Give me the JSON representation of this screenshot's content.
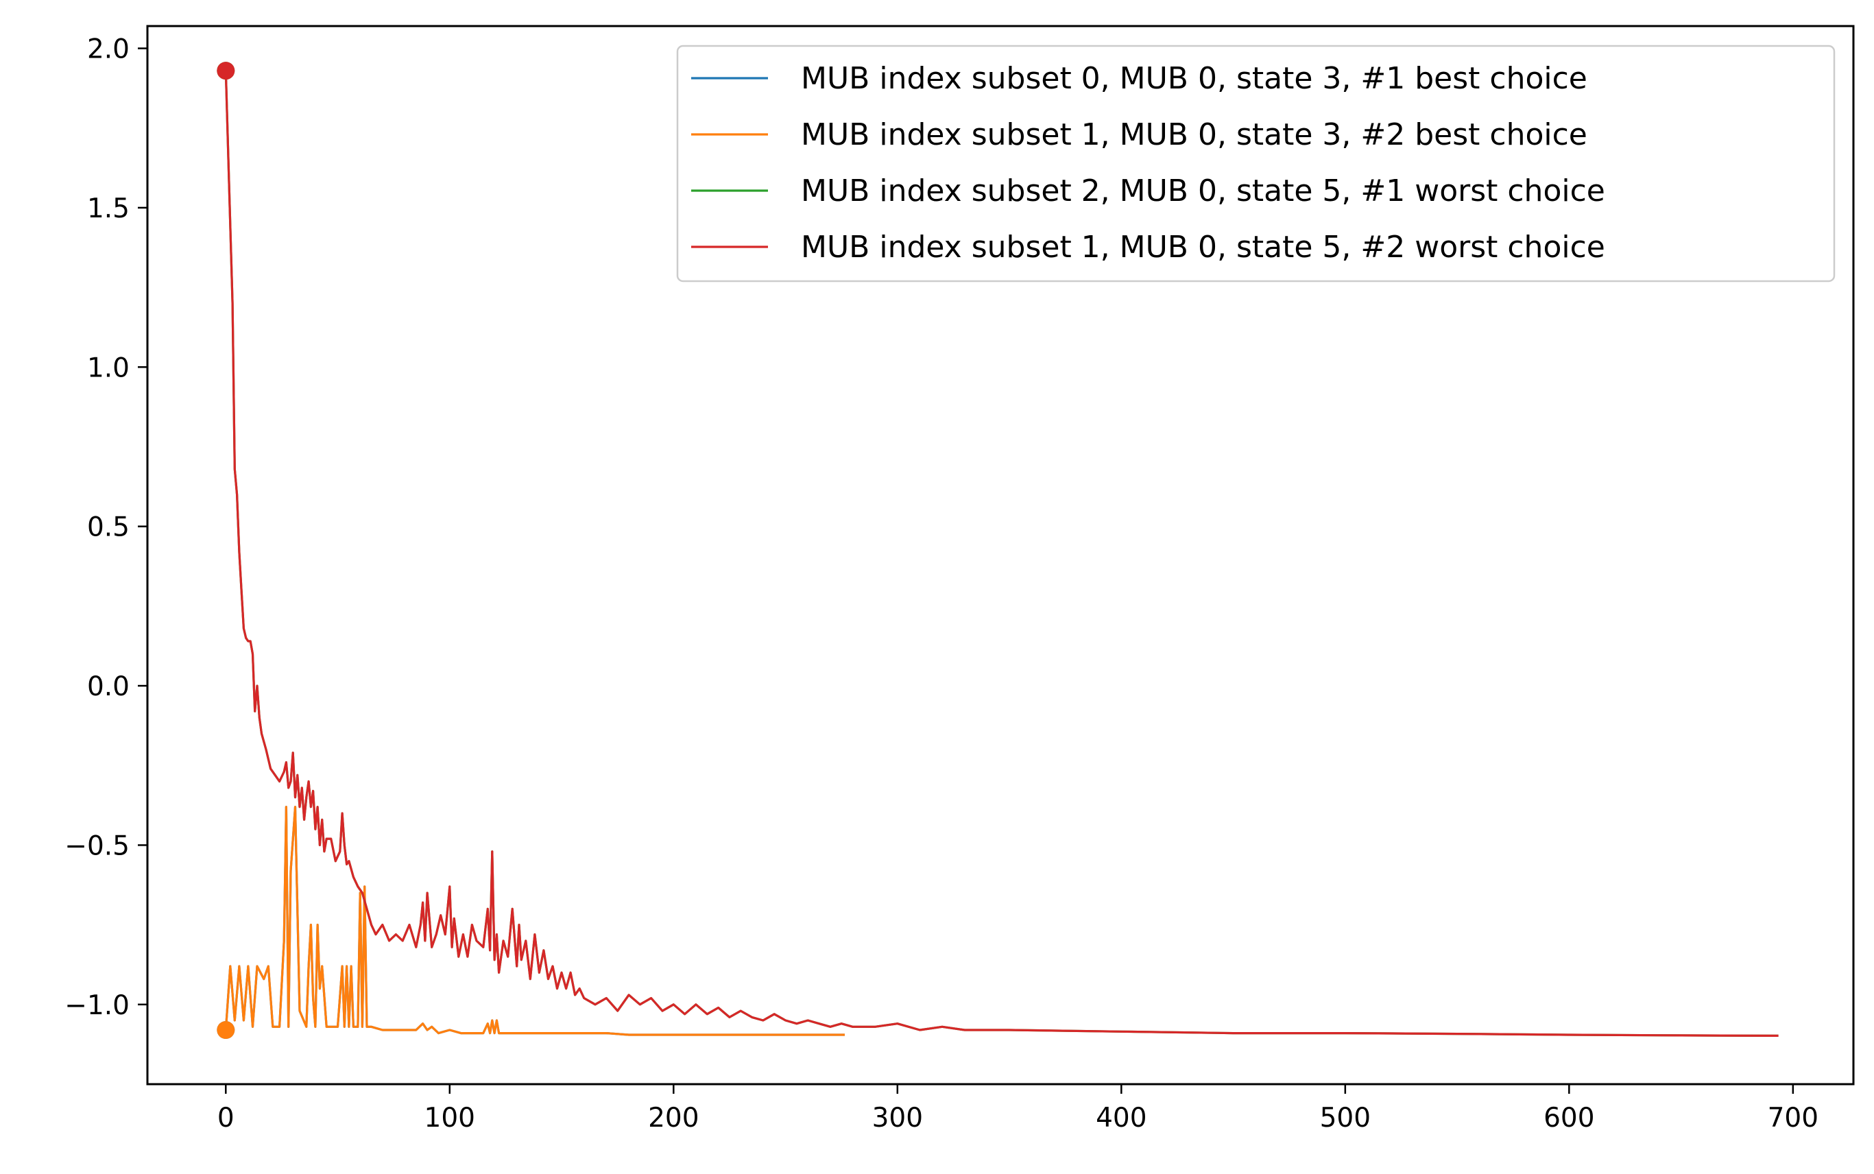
{
  "chart_data": {
    "type": "line",
    "title": "",
    "xlabel": "",
    "ylabel": "",
    "xlim": [
      -35,
      727
    ],
    "ylim": [
      -1.25,
      2.07
    ],
    "xticks": [
      0,
      100,
      200,
      300,
      400,
      500,
      600,
      700
    ],
    "xtick_labels": [
      "0",
      "100",
      "200",
      "300",
      "400",
      "500",
      "600",
      "700"
    ],
    "yticks": [
      -1.0,
      -0.5,
      0.0,
      0.5,
      1.0,
      1.5,
      2.0
    ],
    "ytick_labels": [
      "−1.0",
      "−0.5",
      "0.0",
      "0.5",
      "1.0",
      "1.5",
      "2.0"
    ],
    "grid": false,
    "legend_position": "top-right",
    "series": [
      {
        "name": "MUB index subset 0, MUB 0, state 3, #1 best choice",
        "color": "#1f77b4",
        "x": [
          0,
          2,
          4,
          6,
          8,
          10,
          12,
          14,
          17,
          19,
          21,
          24,
          26,
          27,
          28,
          29,
          31,
          33,
          36,
          37,
          38,
          39,
          40,
          41,
          42,
          43,
          45,
          48,
          50,
          52,
          53,
          54,
          55,
          56,
          57,
          59,
          60,
          61,
          62,
          63,
          65,
          70,
          75,
          80,
          85,
          88,
          90,
          92,
          95,
          100,
          105,
          110,
          115,
          117,
          118,
          119,
          120,
          121,
          122,
          125,
          130,
          140,
          150,
          165,
          170,
          180,
          200,
          240,
          276
        ],
        "y": [
          -1.08,
          -0.88,
          -1.05,
          -0.88,
          -1.05,
          -0.88,
          -1.07,
          -0.88,
          -0.92,
          -0.88,
          -1.07,
          -1.07,
          -0.8,
          -0.38,
          -1.07,
          -0.58,
          -0.38,
          -1.02,
          -1.07,
          -0.88,
          -0.75,
          -0.98,
          -1.07,
          -0.75,
          -0.95,
          -0.88,
          -1.07,
          -1.07,
          -1.07,
          -0.88,
          -1.07,
          -0.88,
          -1.07,
          -0.88,
          -1.07,
          -1.07,
          -0.65,
          -1.07,
          -0.63,
          -1.07,
          -1.07,
          -1.08,
          -1.08,
          -1.08,
          -1.08,
          -1.06,
          -1.08,
          -1.07,
          -1.09,
          -1.08,
          -1.09,
          -1.09,
          -1.09,
          -1.06,
          -1.09,
          -1.05,
          -1.09,
          -1.05,
          -1.09,
          -1.09,
          -1.09,
          -1.09,
          -1.09,
          -1.09,
          -1.09,
          -1.095,
          -1.095,
          -1.095,
          -1.095
        ],
        "marker": {
          "x": 0,
          "y": -1.08
        }
      },
      {
        "name": "MUB index subset 1, MUB 0, state 3, #2 best choice",
        "color": "#ff7f0e",
        "x": [
          0,
          2,
          4,
          6,
          8,
          10,
          12,
          14,
          17,
          19,
          21,
          24,
          26,
          27,
          28,
          29,
          31,
          33,
          36,
          37,
          38,
          39,
          40,
          41,
          42,
          43,
          45,
          48,
          50,
          52,
          53,
          54,
          55,
          56,
          57,
          59,
          60,
          61,
          62,
          63,
          65,
          70,
          75,
          80,
          85,
          88,
          90,
          92,
          95,
          100,
          105,
          110,
          115,
          117,
          118,
          119,
          120,
          121,
          122,
          125,
          130,
          140,
          150,
          165,
          170,
          180,
          200,
          240,
          276
        ],
        "y": [
          -1.08,
          -0.88,
          -1.05,
          -0.88,
          -1.05,
          -0.88,
          -1.07,
          -0.88,
          -0.92,
          -0.88,
          -1.07,
          -1.07,
          -0.8,
          -0.38,
          -1.07,
          -0.58,
          -0.38,
          -1.02,
          -1.07,
          -0.88,
          -0.75,
          -0.98,
          -1.07,
          -0.75,
          -0.95,
          -0.88,
          -1.07,
          -1.07,
          -1.07,
          -0.88,
          -1.07,
          -0.88,
          -1.07,
          -0.88,
          -1.07,
          -1.07,
          -0.65,
          -1.07,
          -0.63,
          -1.07,
          -1.07,
          -1.08,
          -1.08,
          -1.08,
          -1.08,
          -1.06,
          -1.08,
          -1.07,
          -1.09,
          -1.08,
          -1.09,
          -1.09,
          -1.09,
          -1.06,
          -1.09,
          -1.05,
          -1.09,
          -1.05,
          -1.09,
          -1.09,
          -1.09,
          -1.09,
          -1.09,
          -1.09,
          -1.09,
          -1.095,
          -1.095,
          -1.095,
          -1.095
        ],
        "marker": {
          "x": 0,
          "y": -1.08
        }
      },
      {
        "name": "MUB index subset 2, MUB 0, state 5, #1 worst choice",
        "color": "#2ca02c",
        "x": [
          0,
          3,
          4,
          5,
          6,
          7,
          8,
          9,
          10,
          11,
          12,
          13,
          14,
          15,
          16,
          18,
          20,
          22,
          24,
          26,
          27,
          28,
          29,
          30,
          31,
          32,
          33,
          34,
          35,
          36,
          37,
          38,
          39,
          40,
          41,
          42,
          43,
          44,
          45,
          47,
          49,
          51,
          52,
          53,
          54,
          55,
          57,
          59,
          61,
          63,
          65,
          67,
          70,
          73,
          76,
          79,
          82,
          85,
          87,
          88,
          89,
          90,
          92,
          94,
          96,
          98,
          100,
          101,
          102,
          104,
          106,
          108,
          110,
          112,
          115,
          117,
          118,
          119,
          120,
          121,
          122,
          124,
          126,
          128,
          130,
          131,
          132,
          134,
          136,
          138,
          140,
          142,
          144,
          146,
          148,
          150,
          152,
          154,
          156,
          158,
          160,
          165,
          170,
          175,
          180,
          185,
          190,
          195,
          200,
          205,
          210,
          215,
          220,
          225,
          230,
          235,
          240,
          245,
          250,
          255,
          260,
          265,
          270,
          275,
          280,
          290,
          300,
          310,
          320,
          330,
          350,
          400,
          450,
          500,
          550,
          600,
          650,
          693
        ],
        "y": [
          1.93,
          1.2,
          0.68,
          0.6,
          0.42,
          0.3,
          0.18,
          0.15,
          0.14,
          0.14,
          0.1,
          -0.08,
          0.0,
          -0.1,
          -0.15,
          -0.2,
          -0.26,
          -0.28,
          -0.3,
          -0.27,
          -0.24,
          -0.32,
          -0.3,
          -0.21,
          -0.35,
          -0.28,
          -0.38,
          -0.32,
          -0.42,
          -0.35,
          -0.3,
          -0.38,
          -0.33,
          -0.45,
          -0.38,
          -0.5,
          -0.42,
          -0.52,
          -0.48,
          -0.48,
          -0.55,
          -0.52,
          -0.4,
          -0.5,
          -0.56,
          -0.55,
          -0.6,
          -0.63,
          -0.65,
          -0.7,
          -0.75,
          -0.78,
          -0.75,
          -0.8,
          -0.78,
          -0.8,
          -0.75,
          -0.82,
          -0.75,
          -0.68,
          -0.8,
          -0.65,
          -0.82,
          -0.78,
          -0.72,
          -0.78,
          -0.63,
          -0.82,
          -0.73,
          -0.85,
          -0.78,
          -0.85,
          -0.75,
          -0.8,
          -0.82,
          -0.7,
          -0.83,
          -0.52,
          -0.86,
          -0.78,
          -0.9,
          -0.8,
          -0.85,
          -0.7,
          -0.88,
          -0.75,
          -0.86,
          -0.8,
          -0.92,
          -0.78,
          -0.9,
          -0.83,
          -0.92,
          -0.88,
          -0.95,
          -0.9,
          -0.95,
          -0.9,
          -0.97,
          -0.95,
          -0.98,
          -1.0,
          -0.98,
          -1.02,
          -0.97,
          -1.0,
          -0.98,
          -1.02,
          -1.0,
          -1.03,
          -1.0,
          -1.03,
          -1.01,
          -1.04,
          -1.02,
          -1.04,
          -1.05,
          -1.03,
          -1.05,
          -1.06,
          -1.05,
          -1.06,
          -1.07,
          -1.06,
          -1.07,
          -1.07,
          -1.06,
          -1.08,
          -1.07,
          -1.08,
          -1.08,
          -1.085,
          -1.09,
          -1.09,
          -1.092,
          -1.095,
          -1.097,
          -1.098
        ],
        "marker": {
          "x": 0,
          "y": 1.93
        }
      },
      {
        "name": "MUB index subset 1, MUB 0, state 5, #2 worst choice",
        "color": "#d62728",
        "x": [
          0,
          3,
          4,
          5,
          6,
          7,
          8,
          9,
          10,
          11,
          12,
          13,
          14,
          15,
          16,
          18,
          20,
          22,
          24,
          26,
          27,
          28,
          29,
          30,
          31,
          32,
          33,
          34,
          35,
          36,
          37,
          38,
          39,
          40,
          41,
          42,
          43,
          44,
          45,
          47,
          49,
          51,
          52,
          53,
          54,
          55,
          57,
          59,
          61,
          63,
          65,
          67,
          70,
          73,
          76,
          79,
          82,
          85,
          87,
          88,
          89,
          90,
          92,
          94,
          96,
          98,
          100,
          101,
          102,
          104,
          106,
          108,
          110,
          112,
          115,
          117,
          118,
          119,
          120,
          121,
          122,
          124,
          126,
          128,
          130,
          131,
          132,
          134,
          136,
          138,
          140,
          142,
          144,
          146,
          148,
          150,
          152,
          154,
          156,
          158,
          160,
          165,
          170,
          175,
          180,
          185,
          190,
          195,
          200,
          205,
          210,
          215,
          220,
          225,
          230,
          235,
          240,
          245,
          250,
          255,
          260,
          265,
          270,
          275,
          280,
          290,
          300,
          310,
          320,
          330,
          350,
          400,
          450,
          500,
          550,
          600,
          650,
          693
        ],
        "y": [
          1.93,
          1.2,
          0.68,
          0.6,
          0.42,
          0.3,
          0.18,
          0.15,
          0.14,
          0.14,
          0.1,
          -0.08,
          0.0,
          -0.1,
          -0.15,
          -0.2,
          -0.26,
          -0.28,
          -0.3,
          -0.27,
          -0.24,
          -0.32,
          -0.3,
          -0.21,
          -0.35,
          -0.28,
          -0.38,
          -0.32,
          -0.42,
          -0.35,
          -0.3,
          -0.38,
          -0.33,
          -0.45,
          -0.38,
          -0.5,
          -0.42,
          -0.52,
          -0.48,
          -0.48,
          -0.55,
          -0.52,
          -0.4,
          -0.5,
          -0.56,
          -0.55,
          -0.6,
          -0.63,
          -0.65,
          -0.7,
          -0.75,
          -0.78,
          -0.75,
          -0.8,
          -0.78,
          -0.8,
          -0.75,
          -0.82,
          -0.75,
          -0.68,
          -0.8,
          -0.65,
          -0.82,
          -0.78,
          -0.72,
          -0.78,
          -0.63,
          -0.82,
          -0.73,
          -0.85,
          -0.78,
          -0.85,
          -0.75,
          -0.8,
          -0.82,
          -0.7,
          -0.83,
          -0.52,
          -0.86,
          -0.78,
          -0.9,
          -0.8,
          -0.85,
          -0.7,
          -0.88,
          -0.75,
          -0.86,
          -0.8,
          -0.92,
          -0.78,
          -0.9,
          -0.83,
          -0.92,
          -0.88,
          -0.95,
          -0.9,
          -0.95,
          -0.9,
          -0.97,
          -0.95,
          -0.98,
          -1.0,
          -0.98,
          -1.02,
          -0.97,
          -1.0,
          -0.98,
          -1.02,
          -1.0,
          -1.03,
          -1.0,
          -1.03,
          -1.01,
          -1.04,
          -1.02,
          -1.04,
          -1.05,
          -1.03,
          -1.05,
          -1.06,
          -1.05,
          -1.06,
          -1.07,
          -1.06,
          -1.07,
          -1.07,
          -1.06,
          -1.08,
          -1.07,
          -1.08,
          -1.08,
          -1.085,
          -1.09,
          -1.09,
          -1.092,
          -1.095,
          -1.097,
          -1.098
        ],
        "marker": {
          "x": 0,
          "y": 1.93
        }
      }
    ]
  }
}
